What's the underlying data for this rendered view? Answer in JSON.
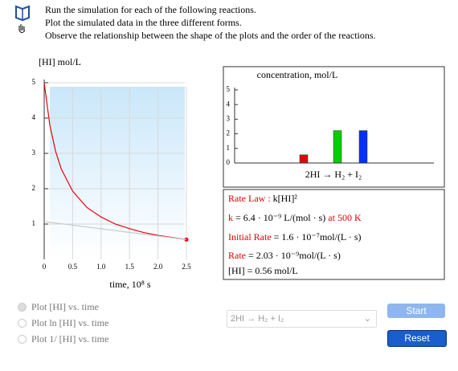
{
  "instructions": [
    "Run the simulation for each of the following reactions.",
    "Plot the simulated data in the three different forms.",
    "Observe the relationship between the shape of the plots and the order of the reactions."
  ],
  "chart_data": [
    {
      "type": "line",
      "y_label": "[HI] mol/L",
      "x_label": "time, 10⁸ s",
      "xlim": [
        0,
        2.5
      ],
      "ylim": [
        0,
        5
      ],
      "xticks": [
        0,
        0.5,
        {
          "value": 1,
          "label": "1.0"
        },
        1.5,
        {
          "value": 2,
          "label": "2.0"
        },
        2.5
      ],
      "yticks": [
        1,
        2,
        3,
        4,
        5
      ],
      "grid": true,
      "series": [
        {
          "color": "#e8000b",
          "x": [
            0,
            0.1,
            0.2,
            0.3,
            0.5,
            0.75,
            1,
            1.25,
            1.5,
            1.75,
            2,
            2.25,
            2.5
          ],
          "values": [
            5,
            3.79,
            3.06,
            2.56,
            1.93,
            1.47,
            1.2,
            1.0,
            0.87,
            0.76,
            0.68,
            0.62,
            0.56
          ]
        },
        {
          "color": "#c8c8c8",
          "x": [
            0,
            2.5
          ],
          "values": [
            1.07,
            0.56
          ]
        }
      ]
    },
    {
      "type": "bar",
      "title": "concentration, mol/L",
      "x_label": "2HI → H₂ + I₂",
      "categories": [
        null,
        null,
        null
      ],
      "values": [
        0.56,
        2.22,
        2.22
      ],
      "colors": [
        "#e8000b",
        "#00d000",
        "#0030ff"
      ],
      "ylim": [
        0,
        5
      ],
      "yticks": [
        0,
        1,
        2,
        3,
        4,
        5
      ]
    }
  ],
  "info": {
    "rate_law": {
      "label": "Rate Law :",
      "value": "k[HI]²"
    },
    "k": {
      "label": "k",
      "value": "= 6.4 · 10⁻⁹ L/(mol · s)",
      "temp": "at 500 K"
    },
    "initial_rate": {
      "label": "Initial Rate",
      "value": "= 1.6 · 10⁻⁷mol/(L · s)"
    },
    "rate": {
      "label": "Rate",
      "value": "= 2.03 · 10⁻⁹mol/(L · s)"
    },
    "conc": "[HI] = 0.56 mol/L"
  },
  "controls": {
    "radios": [
      "Plot [HI] vs. time",
      "Plot ln [HI] vs. time",
      "Plot 1/ [HI] vs. time"
    ],
    "select": "2HI → H₂ + I₂",
    "start": "Start",
    "reset": "Reset"
  }
}
